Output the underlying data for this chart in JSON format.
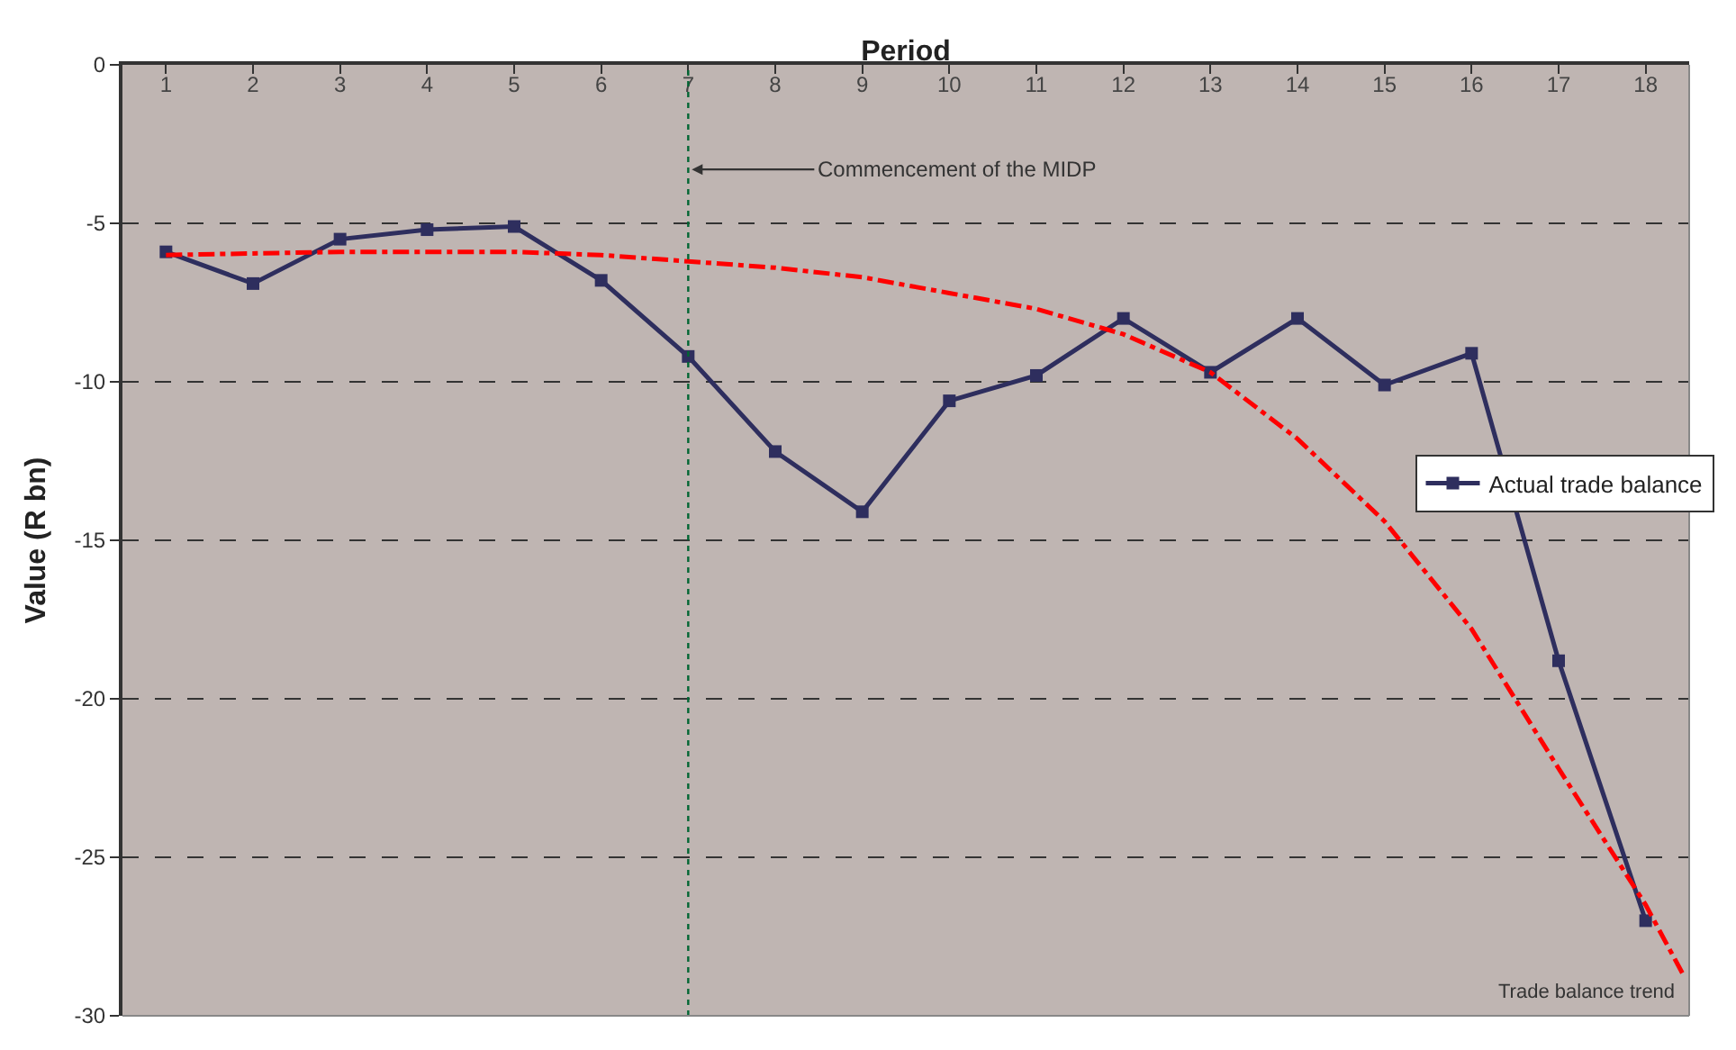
{
  "chart_data": {
    "type": "line",
    "xlabel": "Period",
    "ylabel": "Value (R bn)",
    "x": [
      1,
      2,
      3,
      4,
      5,
      6,
      7,
      8,
      9,
      10,
      11,
      12,
      13,
      14,
      15,
      16,
      17,
      18
    ],
    "xlim": [
      0.5,
      18.5
    ],
    "xticks": [
      1,
      2,
      3,
      4,
      5,
      6,
      7,
      8,
      9,
      10,
      11,
      12,
      13,
      14,
      15,
      16,
      17,
      18
    ],
    "ylim": [
      -30,
      0
    ],
    "yticks": [
      -30,
      -25,
      -20,
      -15,
      -10,
      -5,
      0
    ],
    "grid": "y",
    "legend": "right",
    "series": [
      {
        "name": "Actual trade balance",
        "color": "#2e2e5e",
        "marker": "square",
        "line_style": "solid",
        "values": [
          -5.9,
          -6.9,
          -5.5,
          -5.2,
          -5.1,
          -6.8,
          -9.2,
          -12.2,
          -14.1,
          -10.6,
          -9.8,
          -8.0,
          -9.7,
          -8.0,
          -10.1,
          -9.1,
          -18.8,
          -27.0
        ]
      },
      {
        "color": "#ff0000",
        "marker": "none",
        "line_style": "dashdot",
        "x": [
          1,
          3,
          5,
          6,
          7,
          8,
          9,
          10,
          11,
          12,
          13,
          14,
          15,
          16,
          17,
          18,
          18.45
        ],
        "values": [
          -6.0,
          -5.9,
          -5.9,
          -6.0,
          -6.2,
          -6.4,
          -6.7,
          -7.2,
          -7.7,
          -8.5,
          -9.7,
          -11.8,
          -14.4,
          -17.8,
          -22.2,
          -26.5,
          -28.8
        ]
      }
    ],
    "ref_lines": [
      {
        "axis": "x",
        "value": 7,
        "label": "Commencement of the MIDP",
        "color": "#006633",
        "line_style": "dotted"
      }
    ],
    "annotations": [
      {
        "text": "Trade balance trend",
        "x": 18.45,
        "y": -28.8
      }
    ]
  }
}
